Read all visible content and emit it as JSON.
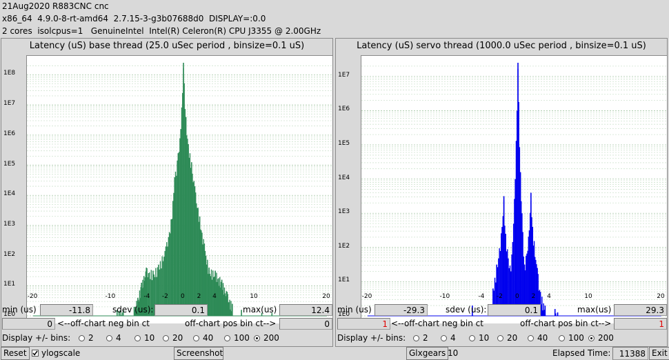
{
  "header": {
    "line1": "21Aug2020 R883CNC cnc",
    "line2": "x86_64  4.9.0-8-rt-amd64  2.7.15-3-g3b07688d0  DISPLAY=:0.0",
    "line3": "2 cores  isolcpus=1   GenuineIntel  Intel(R) Celeron(R) CPU J3355 @ 2.00GHz"
  },
  "left": {
    "title": "Latency (uS) base thread (25.0 uSec period , binsize=0.1 uS)",
    "color": "#2e8b57",
    "ylabels": [
      "1E8",
      "1E7",
      "1E6",
      "1E5",
      "1E4",
      "1E3",
      "1E2",
      "1E1",
      "1E0"
    ],
    "xlabels": [
      "-20",
      "-10",
      "-4",
      "-2",
      "0",
      "2",
      "4",
      "10",
      "20"
    ],
    "min_label": "min (us)",
    "min_value": "-11.8",
    "sdev_label": "sdev (us):",
    "sdev_value": "0.1",
    "max_label": "max(us)",
    "max_value": "12.4",
    "neg_value": "0",
    "neg_label": "<--off-chart neg bin ct",
    "pos_label": "off-chart pos bin ct-->",
    "pos_value": "0",
    "display_label": "Display +/- bins:",
    "bins": [
      "2",
      "4",
      "10",
      "20",
      "40",
      "100",
      "200"
    ],
    "selected_bin": "200"
  },
  "right": {
    "title": "Latency (uS) servo thread (1000.0 uSec period , binsize=0.1 uS)",
    "color": "#0000ee",
    "ylabels": [
      "1E7",
      "1E6",
      "1E5",
      "1E4",
      "1E3",
      "1E2",
      "1E1",
      "1E0"
    ],
    "xlabels": [
      "-20",
      "-10",
      "-4",
      "-2",
      "0",
      "2",
      "4",
      "10",
      "20"
    ],
    "min_label": "min (us)",
    "min_value": "-29.3",
    "sdev_label": "sdev (us):",
    "sdev_value": "0.1",
    "max_label": "max(us)",
    "max_value": "29.3",
    "neg_value": "1",
    "neg_label": "<--off-chart neg bin ct",
    "pos_label": "off-chart pos bin ct-->",
    "pos_value": "1",
    "display_label": "Display +/- bins:",
    "bins": [
      "2",
      "4",
      "10",
      "20",
      "40",
      "100",
      "200"
    ],
    "selected_bin": "200"
  },
  "footer": {
    "reset": "Reset",
    "ylogscale": "ylogscale",
    "screenshot": "Screenshot",
    "glxgears": "Glxgears",
    "glx_value": "10",
    "elapsed_label": "Elapsed Time:",
    "elapsed_value": "11388",
    "exit": "Exit"
  },
  "chart_data": [
    {
      "type": "bar",
      "title": "Latency (uS) base thread (25.0 uSec period , binsize=0.1 uS)",
      "x_ticks": [
        -20,
        -10,
        -4,
        -2,
        0,
        2,
        4,
        10,
        20
      ],
      "y_scale": "log",
      "ylim_log10": [
        0,
        8.4
      ],
      "series": [
        {
          "peaks": [
            {
              "x": -9.0,
              "log10": 0.2
            },
            {
              "x": -8.0,
              "log10": 0.2
            },
            {
              "x": -6.2,
              "log10": 0.3
            },
            {
              "x": -5.6,
              "log10": 0.6
            },
            {
              "x": -5.0,
              "log10": 1.1
            },
            {
              "x": -4.2,
              "log10": 1.6
            },
            {
              "x": -3.4,
              "log10": 1.5
            },
            {
              "x": -2.8,
              "log10": 1.7
            },
            {
              "x": -2.0,
              "log10": 2.3
            },
            {
              "x": -1.4,
              "log10": 3.2
            },
            {
              "x": -1.0,
              "log10": 4.6
            },
            {
              "x": -0.6,
              "log10": 5.4
            },
            {
              "x": -0.3,
              "log10": 6.2
            },
            {
              "x": 0.0,
              "log10": 8.4
            },
            {
              "x": 0.3,
              "log10": 6.6
            },
            {
              "x": 0.6,
              "log10": 5.7
            },
            {
              "x": 1.0,
              "log10": 5.1
            },
            {
              "x": 1.4,
              "log10": 4.3
            },
            {
              "x": 2.0,
              "log10": 3.3
            },
            {
              "x": 2.6,
              "log10": 2.4
            },
            {
              "x": 3.2,
              "log10": 1.6
            },
            {
              "x": 4.0,
              "log10": 1.5
            },
            {
              "x": 5.0,
              "log10": 1.2
            },
            {
              "x": 5.8,
              "log10": 0.8
            },
            {
              "x": 6.6,
              "log10": 0.4
            },
            {
              "x": 8.0,
              "log10": 0.2
            },
            {
              "x": 11.0,
              "log10": 0.1
            },
            {
              "x": 12.4,
              "log10": 0.1
            }
          ]
        }
      ]
    },
    {
      "type": "bar",
      "title": "Latency (uS) servo thread (1000.0 uSec period , binsize=0.1 uS)",
      "x_ticks": [
        -20,
        -10,
        -4,
        -2,
        0,
        2,
        4,
        10,
        20
      ],
      "y_scale": "log",
      "ylim_log10": [
        0,
        7.4
      ],
      "series": [
        {
          "peaks": [
            {
              "x": -5.6,
              "log10": 0.3
            },
            {
              "x": -2.8,
              "log10": 0.8
            },
            {
              "x": -2.4,
              "log10": 1.5
            },
            {
              "x": -1.8,
              "log10": 2.6
            },
            {
              "x": -1.6,
              "log10": 3.5
            },
            {
              "x": -1.4,
              "log10": 2.4
            },
            {
              "x": -0.8,
              "log10": 1.3
            },
            {
              "x": -0.3,
              "log10": 4.0
            },
            {
              "x": 0.0,
              "log10": 7.4
            },
            {
              "x": 0.3,
              "log10": 4.2
            },
            {
              "x": 0.8,
              "log10": 1.5
            },
            {
              "x": 1.4,
              "log10": 2.5
            },
            {
              "x": 1.6,
              "log10": 3.6
            },
            {
              "x": 1.8,
              "log10": 2.6
            },
            {
              "x": 2.4,
              "log10": 1.4
            },
            {
              "x": 2.8,
              "log10": 0.7
            },
            {
              "x": 3.4,
              "log10": 0.3
            },
            {
              "x": 4.8,
              "log10": 0.2
            },
            {
              "x": 5.2,
              "log10": 0.1
            }
          ]
        }
      ]
    }
  ]
}
